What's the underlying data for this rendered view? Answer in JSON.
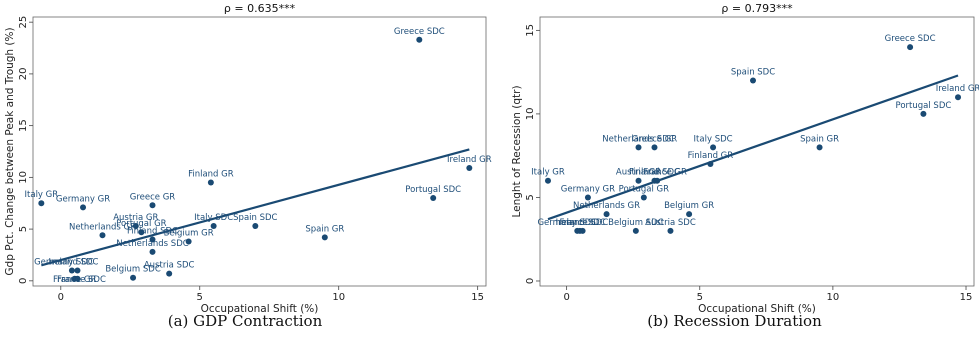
{
  "captions": {
    "a": "(a) GDP Contraction",
    "b": "(b) Recession Duration"
  },
  "chart_data": [
    {
      "type": "scatter",
      "title": "ρ = 0.635***",
      "xlabel": "Occupational Shift (%)",
      "ylabel": "Gdp Pct. Change between Peak and Trough (%)",
      "xlim": [
        -1,
        15.3
      ],
      "ylim": [
        -0.5,
        25.5
      ],
      "xticks": [
        0,
        5,
        10,
        15
      ],
      "yticks": [
        0,
        5,
        10,
        15,
        20,
        25
      ],
      "fit_line": {
        "x": [
          -0.7,
          14.7
        ],
        "y": [
          1.5,
          12.7
        ]
      },
      "points": [
        {
          "label": "Greece SDC",
          "x": 12.9,
          "y": 23.3
        },
        {
          "label": "Ireland GR",
          "x": 14.7,
          "y": 10.9
        },
        {
          "label": "Portugal SDC",
          "x": 13.4,
          "y": 8.0
        },
        {
          "label": "Spain GR",
          "x": 9.5,
          "y": 4.2
        },
        {
          "label": "Finland GR",
          "x": 5.4,
          "y": 9.5
        },
        {
          "label": "Italy GR",
          "x": -0.7,
          "y": 7.5
        },
        {
          "label": "Germany GR",
          "x": 0.8,
          "y": 7.1
        },
        {
          "label": "Greece GR",
          "x": 3.3,
          "y": 7.3
        },
        {
          "label": "Italy SDC",
          "x": 5.5,
          "y": 5.3
        },
        {
          "label": "Spain SDC",
          "x": 7.0,
          "y": 5.3
        },
        {
          "label": "Austria GR",
          "x": 2.7,
          "y": 5.3
        },
        {
          "label": "Netherlands GR",
          "x": 1.5,
          "y": 4.4
        },
        {
          "label": "Portugal GR",
          "x": 2.9,
          "y": 4.7
        },
        {
          "label": "Finland SDC",
          "x": 3.3,
          "y": 4.0
        },
        {
          "label": "Belgium GR",
          "x": 4.6,
          "y": 3.8
        },
        {
          "label": "Netherlands SDC",
          "x": 3.3,
          "y": 2.8
        },
        {
          "label": "Austria SDC",
          "x": 3.9,
          "y": 0.7
        },
        {
          "label": "Belgium SDC",
          "x": 2.6,
          "y": 0.3
        },
        {
          "label": "Germany SDC",
          "x": 0.4,
          "y": 1.0
        },
        {
          "label": "Ireland SDC",
          "x": 0.6,
          "y": 1.0
        },
        {
          "label": "France GR",
          "x": 0.5,
          "y": 0.2
        },
        {
          "label": "France SDC",
          "x": 0.6,
          "y": 0.2
        }
      ]
    },
    {
      "type": "scatter",
      "title": "ρ = 0.793***",
      "xlabel": "Occupational Shift (%)",
      "ylabel": "Lenght of Recession (qtr)",
      "xlim": [
        -1,
        15.3
      ],
      "ylim": [
        -0.3,
        15.8
      ],
      "xticks": [
        0,
        5,
        10,
        15
      ],
      "yticks": [
        0,
        5,
        10,
        15
      ],
      "fit_line": {
        "x": [
          -0.7,
          14.7
        ],
        "y": [
          3.7,
          12.3
        ]
      },
      "points": [
        {
          "label": "Greece SDC",
          "x": 12.9,
          "y": 14.0
        },
        {
          "label": "Spain SDC",
          "x": 7.0,
          "y": 12.0
        },
        {
          "label": "Ireland GR",
          "x": 14.7,
          "y": 11.0
        },
        {
          "label": "Portugal SDC",
          "x": 13.4,
          "y": 10.0
        },
        {
          "label": "Spain GR",
          "x": 9.5,
          "y": 8.0
        },
        {
          "label": "Italy SDC",
          "x": 5.5,
          "y": 8.0
        },
        {
          "label": "Netherlands SDC",
          "x": 2.7,
          "y": 8.0
        },
        {
          "label": "Greece GR",
          "x": 3.3,
          "y": 8.0
        },
        {
          "label": "Finland GR",
          "x": 5.4,
          "y": 7.0
        },
        {
          "label": "Italy GR",
          "x": -0.7,
          "y": 6.0
        },
        {
          "label": "Austria GR",
          "x": 2.7,
          "y": 6.0
        },
        {
          "label": "Finland SDC",
          "x": 3.3,
          "y": 6.0
        },
        {
          "label": "France GR",
          "x": 3.4,
          "y": 6.0
        },
        {
          "label": "Germany GR",
          "x": 0.8,
          "y": 5.0
        },
        {
          "label": "Portugal GR",
          "x": 2.9,
          "y": 5.0
        },
        {
          "label": "Netherlands GR",
          "x": 1.5,
          "y": 4.0
        },
        {
          "label": "Belgium GR",
          "x": 4.6,
          "y": 4.0
        },
        {
          "label": "Germany SDC",
          "x": 0.4,
          "y": 3.0
        },
        {
          "label": "Ireland SDC",
          "x": 0.6,
          "y": 3.0
        },
        {
          "label": "France SDC",
          "x": 0.5,
          "y": 3.0
        },
        {
          "label": "Belgium SDC",
          "x": 2.6,
          "y": 3.0
        },
        {
          "label": "Austria SDC",
          "x": 3.9,
          "y": 3.0
        }
      ]
    }
  ]
}
